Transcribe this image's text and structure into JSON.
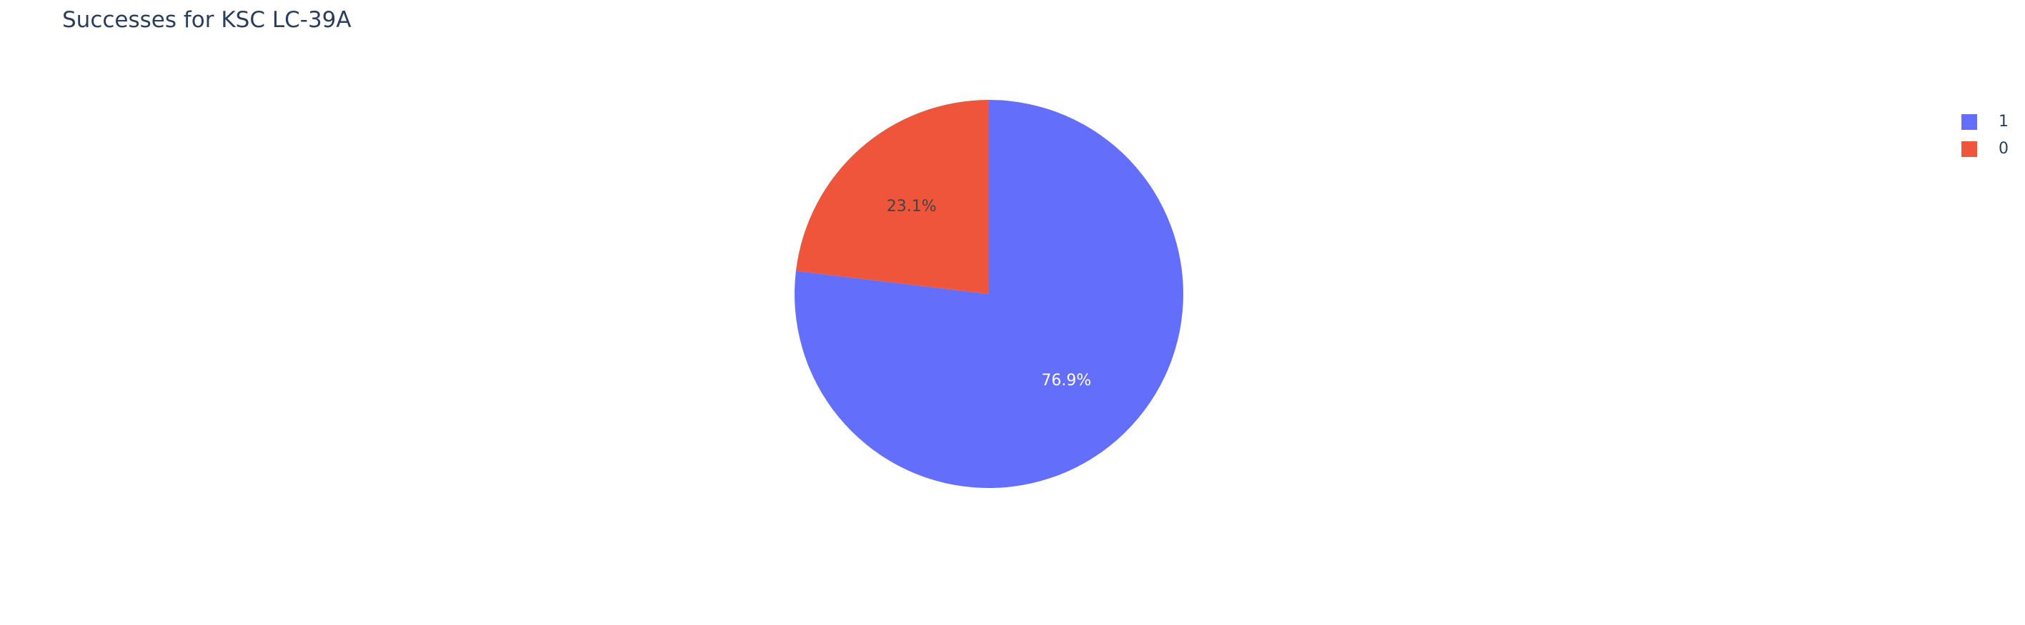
{
  "chart_data": {
    "type": "pie",
    "title": "Successes for KSC LC-39A",
    "labels": [
      "1",
      "0"
    ],
    "values": [
      76.9,
      23.1
    ],
    "percent_labels": [
      "76.9%",
      "23.1%"
    ],
    "colors": [
      "#636efa",
      "#ef553b"
    ],
    "label_colors": [
      "#ffffff",
      "#444444"
    ],
    "legend_placement": "top-right",
    "legend": [
      {
        "label": "1",
        "color": "#636efa"
      },
      {
        "label": "0",
        "color": "#ef553b"
      }
    ]
  }
}
